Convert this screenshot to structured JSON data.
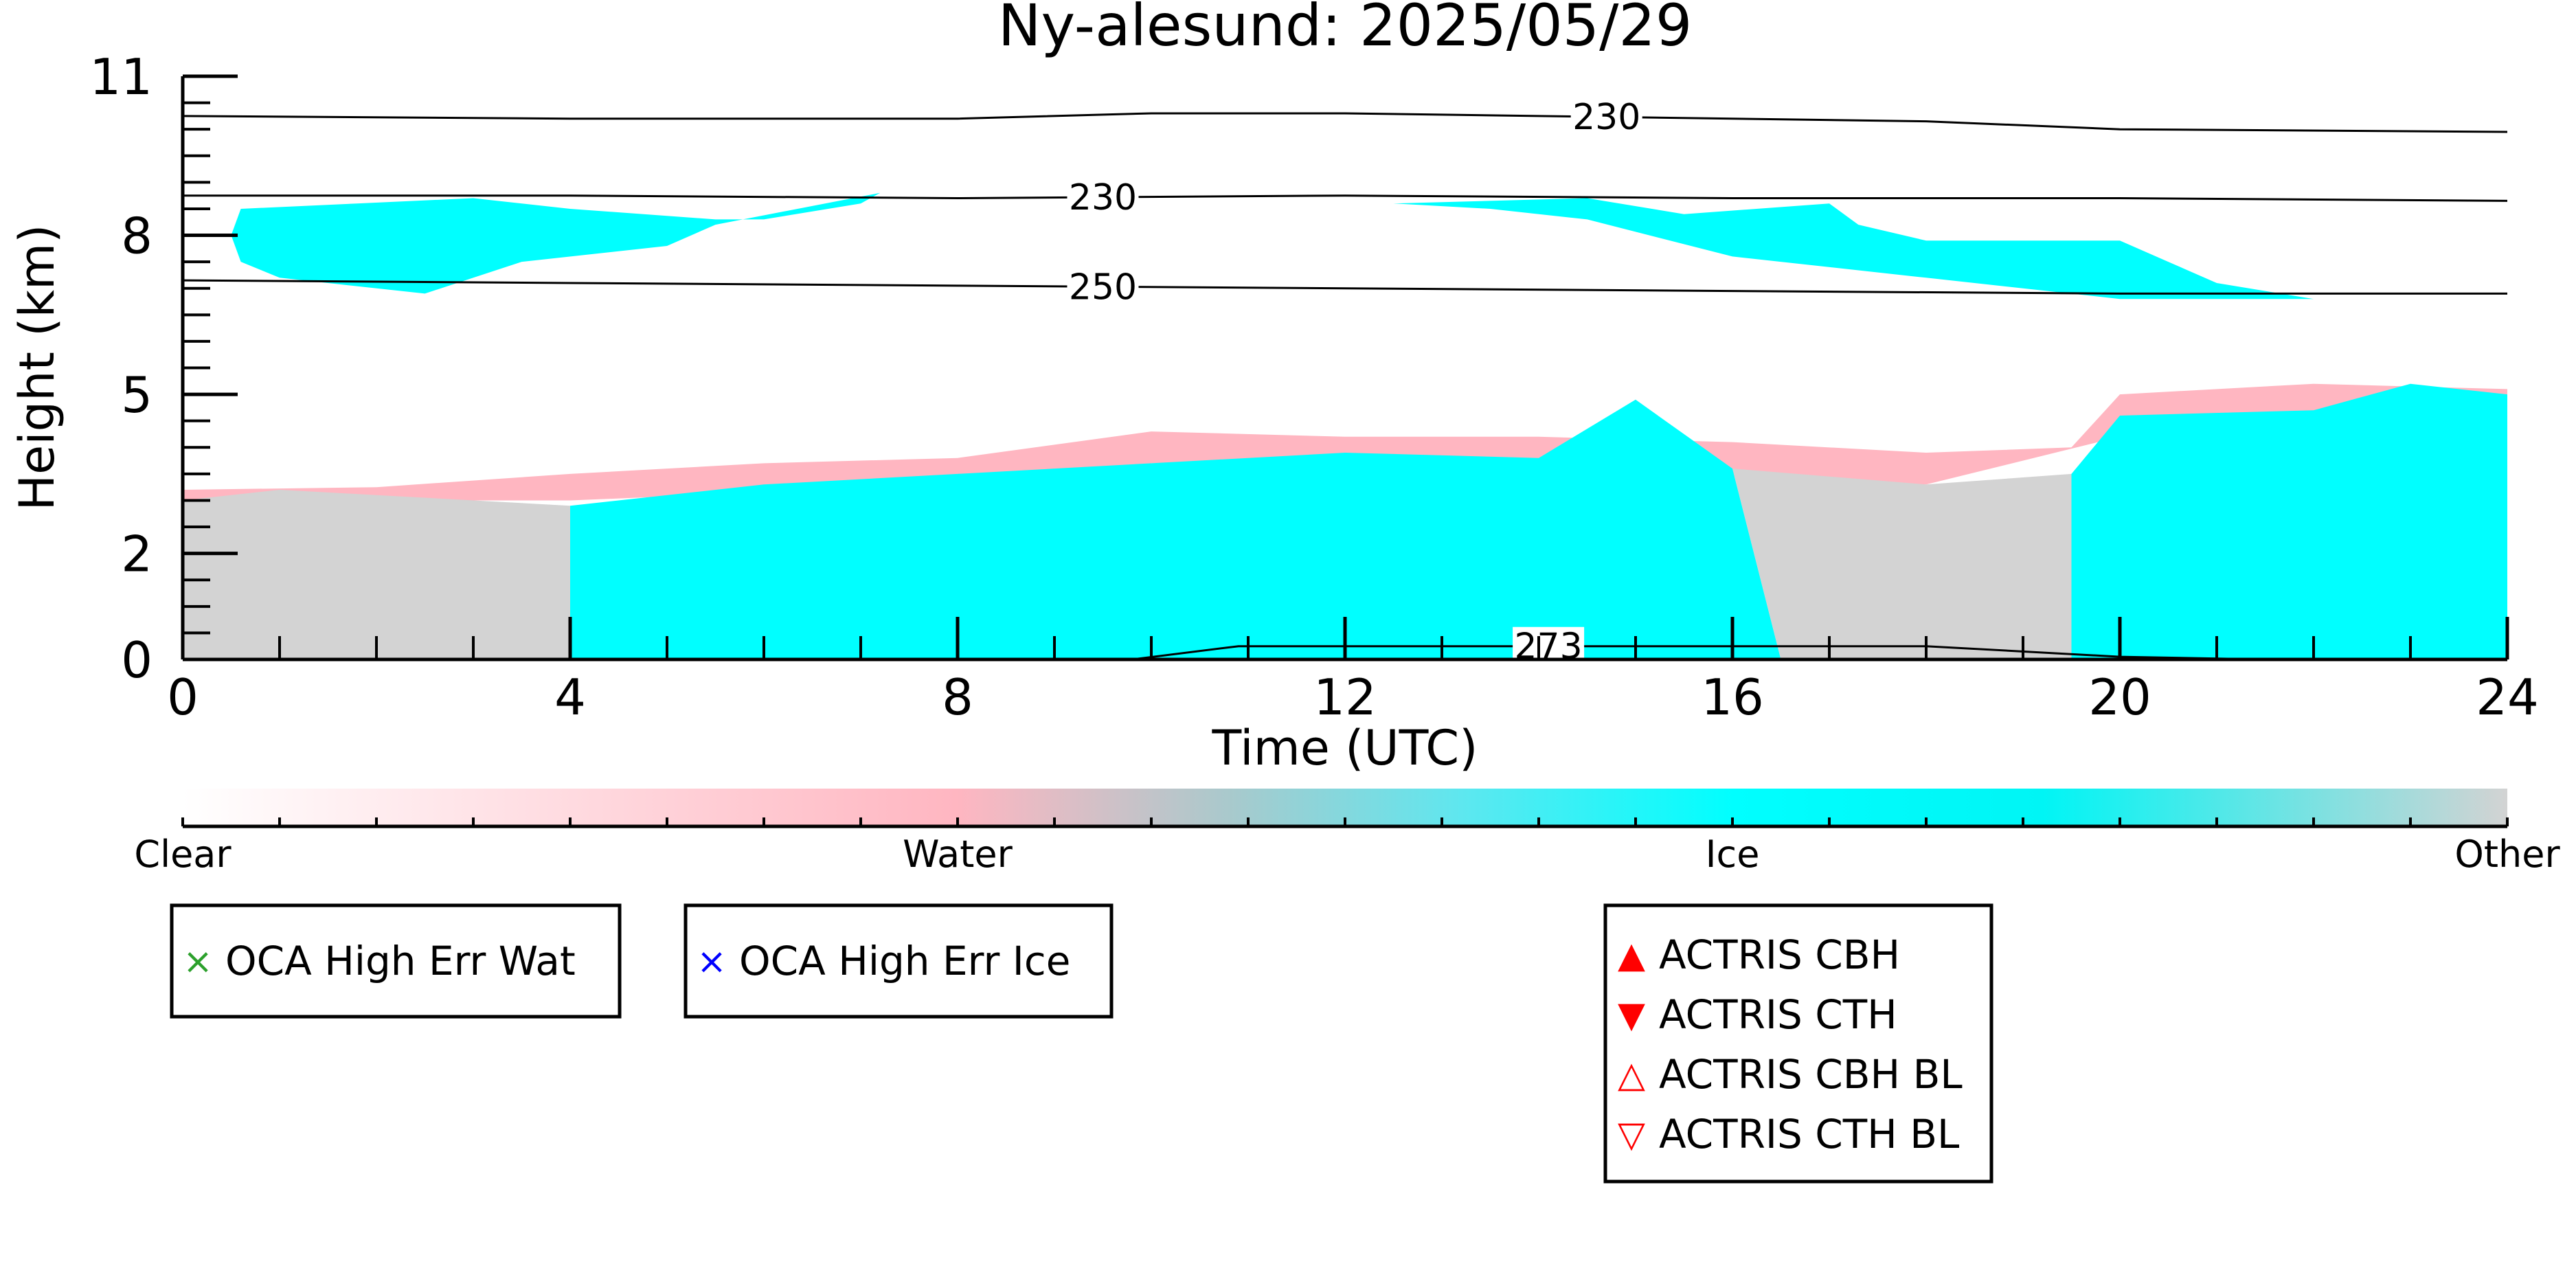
{
  "chart_data": {
    "type": "heatmap",
    "title": "Ny-alesund: 2025/05/29",
    "xlabel": "Time (UTC)",
    "ylabel": "Height (km)",
    "xlim": [
      0,
      24
    ],
    "ylim": [
      0,
      11
    ],
    "x_ticks": [
      0,
      4,
      8,
      12,
      16,
      20,
      24
    ],
    "y_ticks": [
      0,
      2,
      5,
      8,
      11
    ],
    "categories": [
      "Clear",
      "Water",
      "Ice",
      "Other"
    ],
    "colors": {
      "clear": "#ffffff",
      "water": "#ffb6c1",
      "ice": "#00ffff",
      "other": "#d3d3d3",
      "actris": "#ff0000",
      "oca_wat": "#2ca02c",
      "oca_ice": "#0000ff"
    },
    "temperature_contours": [
      {
        "label": "230",
        "points": [
          [
            0,
            10.25
          ],
          [
            4,
            10.2
          ],
          [
            8,
            10.2
          ],
          [
            10,
            10.3
          ],
          [
            12,
            10.3
          ],
          [
            14,
            10.25
          ],
          [
            18,
            10.15
          ],
          [
            20,
            10.0
          ],
          [
            24,
            9.95
          ]
        ]
      },
      {
        "label": "230",
        "points": [
          [
            0,
            8.75
          ],
          [
            4,
            8.75
          ],
          [
            8,
            8.7
          ],
          [
            12,
            8.75
          ],
          [
            16,
            8.7
          ],
          [
            20,
            8.7
          ],
          [
            24,
            8.65
          ]
        ]
      },
      {
        "label": "250",
        "points": [
          [
            0,
            7.15
          ],
          [
            4,
            7.1
          ],
          [
            8,
            7.05
          ],
          [
            12,
            7.0
          ],
          [
            16,
            6.95
          ],
          [
            20,
            6.9
          ],
          [
            24,
            6.9
          ]
        ]
      },
      {
        "label": "273",
        "points": [
          [
            0,
            0
          ],
          [
            9.8,
            0
          ],
          [
            10.9,
            0.25
          ],
          [
            12,
            0.25
          ],
          [
            14,
            0.25
          ],
          [
            16,
            0.25
          ],
          [
            18,
            0.25
          ],
          [
            20,
            0.05
          ],
          [
            21.5,
            0
          ],
          [
            24,
            0
          ]
        ]
      }
    ],
    "contour_label_positions": [
      [
        14.7,
        0
      ],
      [
        9.5,
        1
      ],
      [
        9.5,
        2
      ],
      [
        14.1,
        3
      ]
    ],
    "cloud_regions": [
      {
        "class": "ice",
        "name": "upper-ice-layer-1",
        "points": [
          [
            0.6,
            8.5
          ],
          [
            1.8,
            8.6
          ],
          [
            3.0,
            8.7
          ],
          [
            4.0,
            8.5
          ],
          [
            5.5,
            8.3
          ],
          [
            6.0,
            8.3
          ],
          [
            7.0,
            8.6
          ],
          [
            7.2,
            8.8
          ],
          [
            5.5,
            8.2
          ],
          [
            5.0,
            7.8
          ],
          [
            3.5,
            7.5
          ],
          [
            2.5,
            6.9
          ],
          [
            1.0,
            7.2
          ],
          [
            0.6,
            7.5
          ],
          [
            0.5,
            8.0
          ]
        ]
      },
      {
        "class": "ice",
        "name": "upper-ice-layer-2",
        "points": [
          [
            12.5,
            8.6
          ],
          [
            14.5,
            8.7
          ],
          [
            15.5,
            8.4
          ],
          [
            17.0,
            8.6
          ],
          [
            17.3,
            8.2
          ],
          [
            18.0,
            7.9
          ],
          [
            20.0,
            7.9
          ],
          [
            21.0,
            7.1
          ],
          [
            22.0,
            6.8
          ],
          [
            20.0,
            6.8
          ],
          [
            18.0,
            7.2
          ],
          [
            16.0,
            7.6
          ],
          [
            14.5,
            8.3
          ],
          [
            13.5,
            8.5
          ]
        ]
      },
      {
        "class": "water",
        "name": "boundary-water-top",
        "points": [
          [
            0,
            3.2
          ],
          [
            2,
            3.25
          ],
          [
            4,
            3.5
          ],
          [
            6,
            3.7
          ],
          [
            8,
            3.8
          ],
          [
            10,
            4.3
          ],
          [
            12,
            4.2
          ],
          [
            14,
            4.2
          ],
          [
            16,
            4.1
          ],
          [
            18,
            3.9
          ],
          [
            19.5,
            4.0
          ],
          [
            20,
            5.0
          ],
          [
            22,
            5.2
          ],
          [
            24,
            5.1
          ],
          [
            24,
            4.6
          ],
          [
            20,
            4.2
          ],
          [
            18,
            3.3
          ],
          [
            14,
            3.6
          ],
          [
            12,
            3.8
          ],
          [
            10,
            3.7
          ],
          [
            8,
            3.3
          ],
          [
            4,
            3.0
          ],
          [
            0,
            3.0
          ]
        ]
      },
      {
        "class": "other",
        "name": "boundary-other-left",
        "points": [
          [
            0,
            0
          ],
          [
            0,
            3.0
          ],
          [
            1,
            3.2
          ],
          [
            2,
            3.1
          ],
          [
            4,
            2.9
          ],
          [
            4,
            0
          ]
        ]
      },
      {
        "class": "ice",
        "name": "boundary-ice-main",
        "points": [
          [
            4,
            0
          ],
          [
            4,
            2.9
          ],
          [
            6,
            3.3
          ],
          [
            8,
            3.5
          ],
          [
            10,
            3.7
          ],
          [
            12,
            3.9
          ],
          [
            14,
            3.8
          ],
          [
            15,
            4.9
          ],
          [
            16,
            3.6
          ],
          [
            16.5,
            0
          ]
        ]
      },
      {
        "class": "other",
        "name": "boundary-other-mid",
        "points": [
          [
            16.5,
            0
          ],
          [
            16,
            3.6
          ],
          [
            18,
            3.3
          ],
          [
            19.5,
            3.5
          ],
          [
            19.5,
            0
          ]
        ]
      },
      {
        "class": "ice",
        "name": "boundary-ice-right",
        "points": [
          [
            19.5,
            0
          ],
          [
            19.5,
            3.5
          ],
          [
            20,
            4.6
          ],
          [
            22,
            4.7
          ],
          [
            23,
            5.2
          ],
          [
            24,
            5.0
          ],
          [
            24,
            0
          ]
        ]
      }
    ],
    "legends": [
      {
        "entries": [
          {
            "symbol": "×",
            "color": "#2ca02c",
            "label": "OCA High Err Wat"
          }
        ]
      },
      {
        "entries": [
          {
            "symbol": "×",
            "color": "#0000ff",
            "label": "OCA High Err Ice"
          }
        ]
      },
      {
        "entries": [
          {
            "symbol": "▲",
            "color": "#ff0000",
            "label": "ACTRIS CBH"
          },
          {
            "symbol": "▼",
            "color": "#ff0000",
            "label": "ACTRIS CTH"
          },
          {
            "symbol": "△",
            "color": "#ff0000",
            "label": "ACTRIS CBH BL"
          },
          {
            "symbol": "▽",
            "color": "#ff0000",
            "label": "ACTRIS CTH BL"
          }
        ]
      }
    ],
    "grid": false
  }
}
